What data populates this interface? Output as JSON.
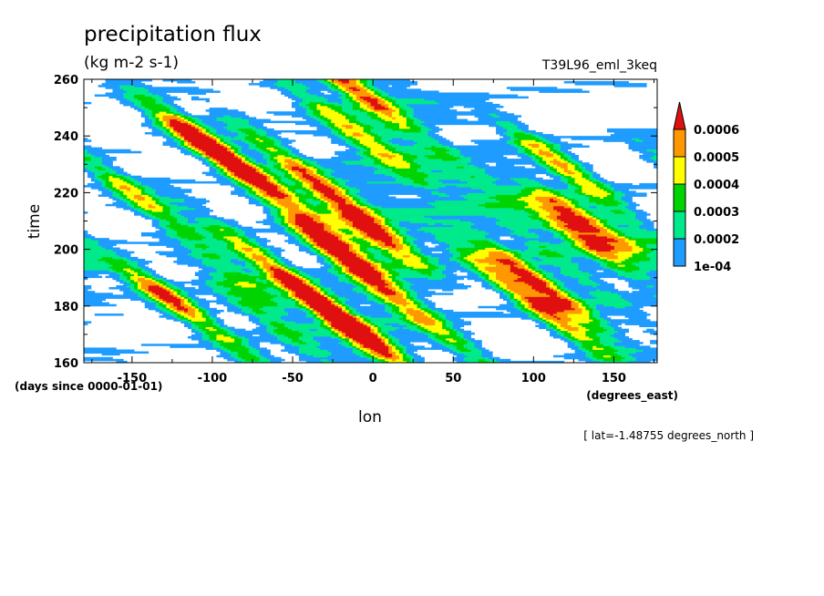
{
  "chart_data": {
    "type": "heatmap",
    "title": "precipitation flux",
    "units": "(kg m-2 s-1)",
    "experiment": "T39L96_eml_3keq",
    "xlabel": "lon",
    "ylabel": "time",
    "x_units": "(degrees_east)",
    "y_units": "(days since 0000-01-01)",
    "footnote": "[ lat=-1.48755 degrees_north ]",
    "xlim": [
      -180,
      177
    ],
    "ylim": [
      160,
      260
    ],
    "xticks": [
      -150,
      -100,
      -50,
      0,
      50,
      100,
      150
    ],
    "yticks": [
      160,
      180,
      200,
      220,
      240,
      260
    ],
    "xtick_labels": [
      "-150",
      "-100",
      "-50",
      "0",
      "50",
      "100",
      "150"
    ],
    "ytick_labels": [
      "160",
      "180",
      "200",
      "220",
      "240",
      "260"
    ],
    "colorbar": {
      "levels": [
        0.0001,
        0.0002,
        0.0003,
        0.0004,
        0.0005,
        0.0006
      ],
      "labels": [
        "1e-04",
        "0.0002",
        "0.0003",
        "0.0004",
        "0.0005",
        "0.0006"
      ],
      "colors": [
        "#1e9cff",
        "#00ea8c",
        "#00d400",
        "#ffff00",
        "#ff9800",
        "#e01010"
      ],
      "below_color": "#ffffff",
      "extend": "max"
    },
    "features": {
      "central_band_lon": 0,
      "westward_streak_slope_deg_per_day": -2.4
    }
  },
  "colors": {
    "background": "#ffffff",
    "axis": "#000000"
  }
}
